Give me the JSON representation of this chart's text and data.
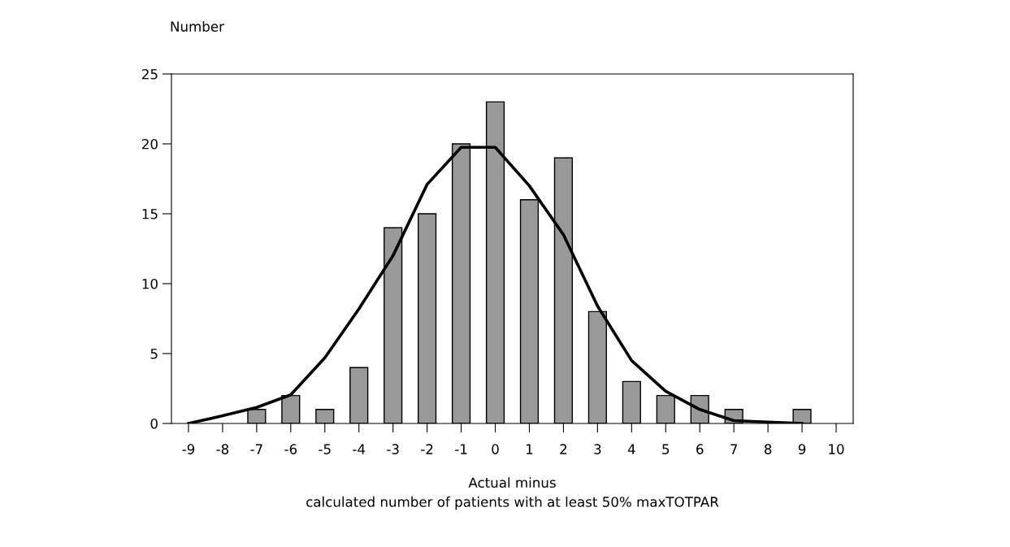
{
  "chart_data": {
    "type": "bar",
    "ylabel": "Number",
    "xlabel": "Actual minus\ncalculated number of patients with at least 50% maxTOTPAR",
    "x": [
      -9,
      -8,
      -7,
      -6,
      -5,
      -4,
      -3,
      -2,
      -1,
      0,
      1,
      2,
      3,
      4,
      5,
      6,
      7,
      8,
      9
    ],
    "series": [
      {
        "color": "#999999",
        "values": [
          null,
          null,
          1,
          2,
          1,
          4,
          14,
          15,
          20,
          23,
          16,
          19,
          8,
          3,
          2,
          2,
          1,
          null,
          1
        ]
      },
      {
        "type": "line",
        "color": "#000000",
        "values": [
          0,
          0.55,
          1.15,
          2.05,
          4.7,
          8.2,
          12.0,
          17.1,
          19.75,
          19.75,
          17.0,
          13.5,
          8.4,
          4.5,
          2.3,
          1.0,
          0.2,
          0.1,
          0
        ]
      }
    ],
    "xlim": [
      -9.5,
      10.5
    ],
    "xticks": [
      -9,
      -8,
      -7,
      -6,
      -5,
      -4,
      -3,
      -2,
      -1,
      0,
      1,
      2,
      3,
      4,
      5,
      6,
      7,
      8,
      9,
      10
    ],
    "ylim": [
      0,
      25
    ],
    "yticks": [
      0,
      5,
      10,
      15,
      20,
      25
    ],
    "grid": false,
    "legend": false,
    "marker": "none",
    "line_style": "solid"
  }
}
